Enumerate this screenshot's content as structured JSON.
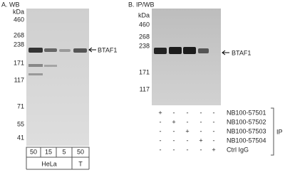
{
  "panel_a": {
    "title": "A. WB",
    "unit": "kDa",
    "markers": [
      "460",
      "268",
      "238",
      "171",
      "117",
      "71",
      "55",
      "41"
    ],
    "band_label": "BTAF1",
    "lanes": [
      "50",
      "15",
      "5",
      "50"
    ],
    "groups": [
      "HeLa",
      "T"
    ]
  },
  "panel_b": {
    "title": "B. IP/WB",
    "unit": "kDa",
    "markers": [
      "460",
      "268",
      "238",
      "171",
      "117"
    ],
    "band_label": "BTAF1",
    "rows": [
      {
        "label": "NB100-57501",
        "signs": [
          "+",
          "-",
          "-",
          "-",
          "-"
        ]
      },
      {
        "label": "NB100-57502",
        "signs": [
          "-",
          "+",
          "-",
          "-",
          "-"
        ]
      },
      {
        "label": "NB100-57503",
        "signs": [
          "-",
          "-",
          "+",
          "-",
          "-"
        ]
      },
      {
        "label": "NB100-57504",
        "signs": [
          "-",
          "-",
          "-",
          "+",
          "-"
        ]
      },
      {
        "label": "Ctrl IgG",
        "signs": [
          "-",
          "-",
          "-",
          "-",
          "+"
        ]
      }
    ],
    "side_label": "IP"
  }
}
